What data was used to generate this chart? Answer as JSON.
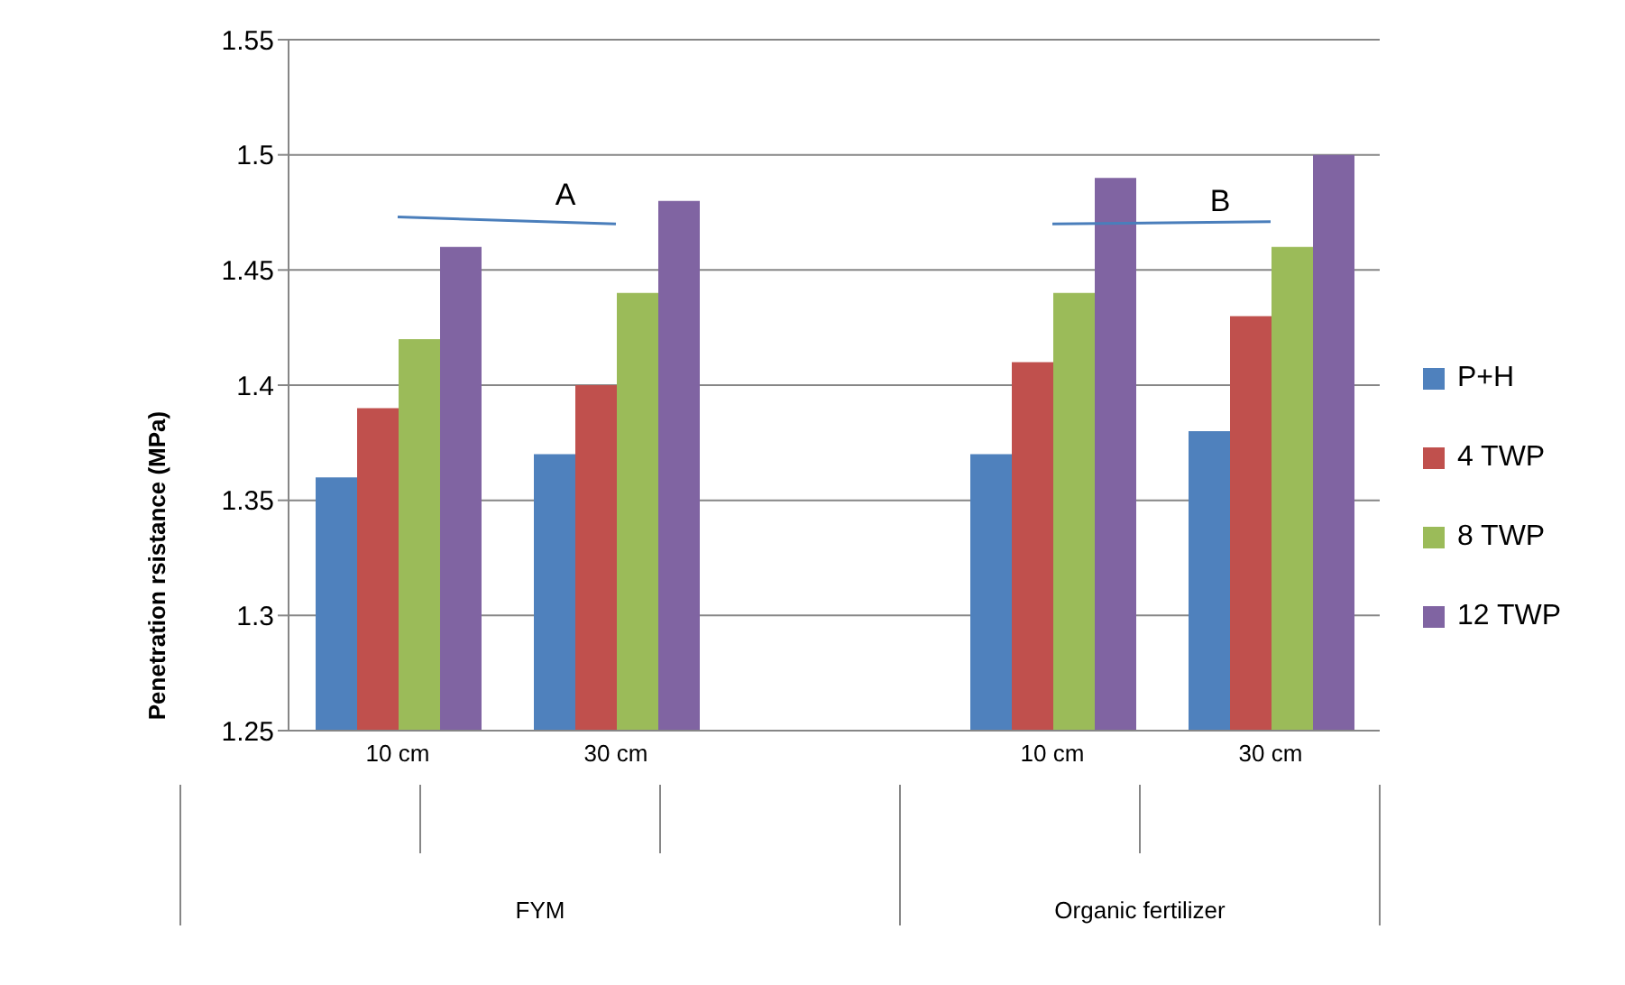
{
  "chart_data": {
    "type": "bar",
    "ylabel": "Penetration rsistance (MPa)",
    "categories": [
      "10 cm",
      "30 cm",
      null,
      "10 cm",
      "30 cm"
    ],
    "series": [
      {
        "name": "P+H",
        "color": "#4f81bd",
        "values": [
          1.36,
          1.37,
          null,
          1.37,
          1.38
        ]
      },
      {
        "name": "4 TWP",
        "color": "#c0504d",
        "values": [
          1.39,
          1.4,
          null,
          1.41,
          1.43
        ]
      },
      {
        "name": "8 TWP",
        "color": "#9bbb59",
        "values": [
          1.42,
          1.44,
          null,
          1.44,
          1.46
        ]
      },
      {
        "name": "12 TWP",
        "color": "#8064a2",
        "values": [
          1.46,
          1.48,
          null,
          1.49,
          1.5
        ]
      },
      {
        "name": "A",
        "type": "line",
        "color": "#4a7ebb",
        "values": [
          1.473,
          1.47,
          null,
          null,
          null
        ]
      },
      {
        "name": "B",
        "type": "line",
        "color": "#4a7ebb",
        "values": [
          null,
          null,
          null,
          1.47,
          1.471
        ]
      }
    ],
    "ylim": [
      1.25,
      1.55
    ],
    "yticks": [
      1.25,
      1.3,
      1.35,
      1.4,
      1.45,
      1.5,
      1.55
    ],
    "grid": "y",
    "legend": "right",
    "annotations": [
      "FYM",
      "Organic fertilizer"
    ]
  }
}
